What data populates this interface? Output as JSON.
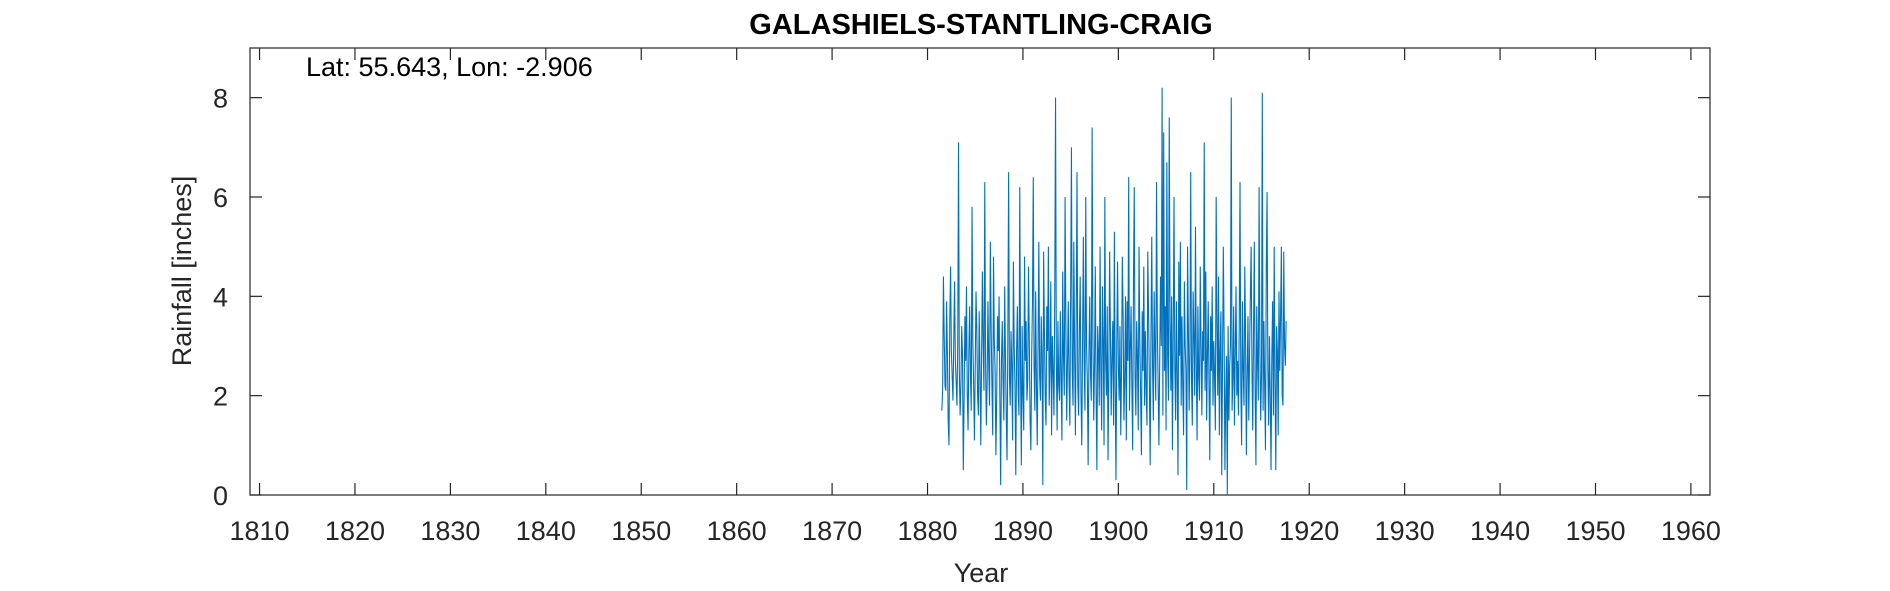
{
  "chart_data": {
    "type": "line",
    "title": "GALASHIELS-STANTLING-CRAIG",
    "xlabel": "Year",
    "ylabel": "Rainfall [inches]",
    "annotation": "Lat: 55.643, Lon: -2.906",
    "xlim": [
      1809,
      1962
    ],
    "ylim": [
      0,
      9
    ],
    "xticks": [
      1810,
      1820,
      1830,
      1840,
      1850,
      1860,
      1870,
      1880,
      1890,
      1900,
      1910,
      1920,
      1930,
      1940,
      1950,
      1960
    ],
    "yticks": [
      0,
      2,
      4,
      6,
      8
    ],
    "grid": false,
    "series_color": "#0072BD",
    "series": [
      {
        "x_start": 1881.5,
        "x_step": 0.08333,
        "values": [
          1.7,
          2.1,
          4.4,
          3.2,
          2.2,
          2.1,
          3.9,
          2.8,
          1.5,
          1.0,
          3.5,
          4.6,
          2.9,
          2.4,
          1.9,
          3.1,
          4.3,
          2.7,
          2.3,
          1.8,
          3.0,
          7.1,
          2.5,
          1.6,
          2.2,
          3.4,
          2.8,
          0.5,
          1.9,
          3.6,
          2.7,
          4.2,
          2.0,
          1.3,
          2.9,
          3.8,
          2.4,
          1.7,
          5.8,
          3.1,
          2.2,
          1.1,
          2.6,
          4.1,
          3.3,
          2.0,
          1.6,
          3.7,
          2.5,
          1.0,
          2.8,
          4.5,
          3.0,
          2.1,
          6.3,
          2.7,
          1.4,
          2.3,
          3.9,
          2.6,
          1.8,
          5.1,
          3.4,
          2.2,
          1.2,
          4.8,
          3.1,
          2.5,
          0.8,
          2.0,
          3.6,
          2.9,
          4.0,
          1.9,
          0.2,
          2.7,
          3.5,
          2.3,
          1.5,
          4.2,
          2.8,
          1.6,
          0.7,
          3.1,
          6.5,
          2.4,
          1.8,
          3.3,
          2.6,
          1.1,
          4.7,
          3.0,
          2.2,
          0.4,
          2.9,
          3.8,
          2.1,
          1.6,
          6.2,
          2.5,
          0.6,
          3.4,
          2.0,
          1.3,
          4.8,
          2.7,
          3.5,
          1.9,
          2.3,
          4.6,
          3.1,
          1.5,
          0.9,
          2.8,
          3.9,
          6.4,
          2.6,
          1.7,
          4.1,
          2.2,
          1.0,
          3.0,
          5.1,
          2.4,
          1.9,
          3.6,
          2.8,
          0.2,
          4.9,
          3.3,
          2.0,
          1.4,
          3.8,
          2.9,
          5.0,
          1.8,
          2.6,
          4.3,
          1.2,
          3.2,
          2.5,
          1.6,
          4.0,
          8.0,
          2.7,
          1.3,
          3.5,
          2.2,
          1.9,
          3.7,
          2.4,
          1.1,
          4.5,
          2.8,
          2.0,
          6.0,
          3.4,
          1.5,
          2.6,
          3.9,
          2.3,
          1.4,
          4.1,
          7.0,
          2.5,
          1.8,
          5.1,
          2.9,
          1.2,
          3.6,
          6.5,
          2.2,
          1.6,
          3.3,
          4.4,
          2.0,
          1.0,
          3.1,
          5.2,
          2.7,
          1.7,
          6.0,
          3.0,
          2.3,
          0.6,
          2.8,
          4.0,
          2.4,
          1.9,
          7.4,
          3.2,
          1.5,
          2.6,
          4.6,
          2.1,
          0.5,
          3.4,
          2.9,
          1.8,
          5.0,
          2.5,
          1.3,
          4.2,
          3.1,
          1.0,
          6.0,
          2.7,
          2.0,
          3.8,
          0.7,
          2.4,
          4.9,
          3.3,
          1.6,
          2.8,
          3.5,
          1.4,
          5.3,
          2.2,
          0.3,
          3.0,
          4.7,
          2.6,
          1.9,
          3.4,
          1.2,
          2.5,
          4.8,
          3.6,
          1.5,
          2.3,
          4.0,
          1.1,
          3.9,
          2.7,
          6.4,
          1.7,
          2.9,
          3.8,
          2.2,
          0.9,
          4.3,
          6.2,
          2.4,
          1.6,
          3.5,
          2.8,
          1.3,
          5.0,
          3.1,
          2.0,
          0.8,
          3.7,
          2.5,
          4.6,
          1.8,
          3.3,
          2.1,
          1.4,
          4.9,
          3.6,
          2.3,
          0.6,
          3.2,
          5.2,
          2.6,
          1.5,
          4.1,
          2.9,
          1.9,
          6.3,
          3.4,
          2.2,
          1.0,
          2.7,
          4.4,
          3.0,
          8.2,
          1.6,
          7.3,
          2.5,
          3.8,
          1.3,
          6.7,
          2.8,
          1.9,
          7.6,
          3.5,
          2.1,
          4.0,
          0.9,
          3.2,
          6.0,
          2.6,
          1.5,
          3.9,
          2.4,
          0.4,
          4.7,
          2.8,
          5.1,
          1.8,
          3.6,
          2.2,
          1.2,
          4.3,
          3.0,
          2.5,
          0.1,
          5.0,
          3.4,
          1.7,
          2.9,
          6.5,
          2.3,
          1.4,
          4.1,
          3.2,
          2.0,
          5.4,
          2.6,
          1.1,
          3.8,
          2.4,
          1.9,
          4.6,
          3.0,
          1.6,
          3.3,
          2.7,
          7.1,
          2.1,
          4.5,
          1.5,
          2.8,
          3.9,
          2.2,
          0.7,
          3.6,
          2.5,
          4.2,
          1.8,
          3.1,
          2.4,
          1.3,
          6.0,
          3.5,
          2.0,
          4.4,
          1.2,
          2.9,
          3.7,
          0.4,
          2.6,
          5.0,
          3.2,
          0.5,
          1.9,
          2.8,
          0.0,
          3.4,
          1.5,
          2.6,
          3.0,
          8.0,
          1.7,
          2.3,
          3.8,
          1.4,
          2.9,
          4.2,
          2.0,
          2.7,
          1.6,
          3.4,
          6.3,
          2.2,
          1.0,
          3.9,
          2.5,
          1.8,
          4.6,
          3.1,
          0.8,
          2.4,
          3.6,
          1.5,
          2.8,
          4.0,
          5.0,
          2.6,
          1.3,
          3.3,
          5.1,
          2.1,
          0.6,
          3.8,
          2.7,
          1.9,
          6.2,
          3.0,
          1.5,
          2.4,
          8.1,
          1.7,
          3.5,
          2.2,
          0.9,
          4.5,
          6.1,
          2.6,
          1.4,
          3.2,
          2.0,
          0.5,
          2.8,
          3.9,
          1.6,
          5.0,
          2.3,
          0.5,
          3.4,
          2.9,
          1.2,
          4.1,
          2.5,
          3.6,
          5.0,
          2.0,
          1.8,
          4.9,
          3.0,
          2.6,
          3.5
        ]
      }
    ]
  }
}
